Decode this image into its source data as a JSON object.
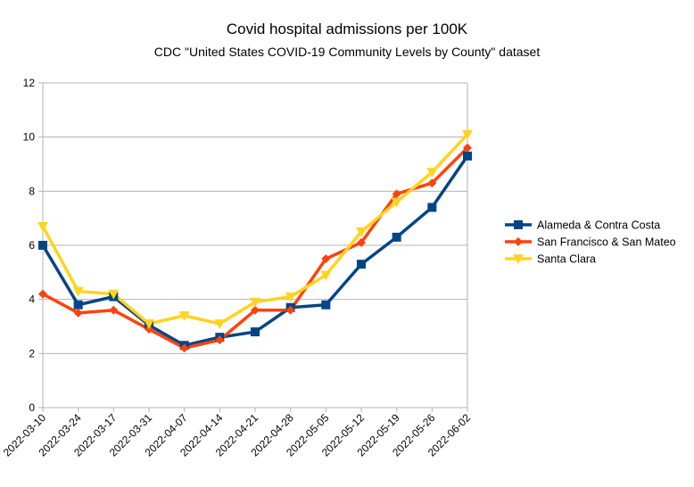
{
  "chart_data": {
    "type": "line",
    "title": "Covid hospital admissions per 100K",
    "subtitle": "CDC \"United States COVID-19 Community Levels by County\" dataset",
    "xlabel": "",
    "ylabel": "",
    "ylim": [
      0,
      12
    ],
    "yticks": [
      "0",
      "2",
      "4",
      "6",
      "8",
      "10",
      "12"
    ],
    "grid": "horizontal",
    "legend_position": "right",
    "categories": [
      "2022-03-10",
      "2022-03-24",
      "2022-03-17",
      "2022-03-31",
      "2022-04-07",
      "2022-04-14",
      "2022-04-21",
      "2022-04-28",
      "2022-05-05",
      "2022-05-12",
      "2022-05-19",
      "2022-05-26",
      "2022-06-02"
    ],
    "series": [
      {
        "name": "Alameda & Contra Costa",
        "color": "#004586",
        "marker": "square",
        "values": [
          6.0,
          3.8,
          4.1,
          3.05,
          2.3,
          2.6,
          2.8,
          3.7,
          3.8,
          5.3,
          6.3,
          7.4,
          9.3
        ]
      },
      {
        "name": "San Francisco & San Mateo",
        "color": "#ff420e",
        "marker": "diamond",
        "values": [
          4.2,
          3.5,
          3.6,
          2.9,
          2.2,
          2.5,
          3.6,
          3.6,
          5.5,
          6.1,
          7.9,
          8.3,
          9.6
        ]
      },
      {
        "name": "Santa Clara",
        "color": "#ffd320",
        "marker": "triangle-down",
        "values": [
          6.7,
          4.3,
          4.2,
          3.1,
          3.4,
          3.1,
          3.9,
          4.1,
          4.9,
          6.5,
          7.6,
          8.7,
          10.1
        ]
      }
    ]
  }
}
